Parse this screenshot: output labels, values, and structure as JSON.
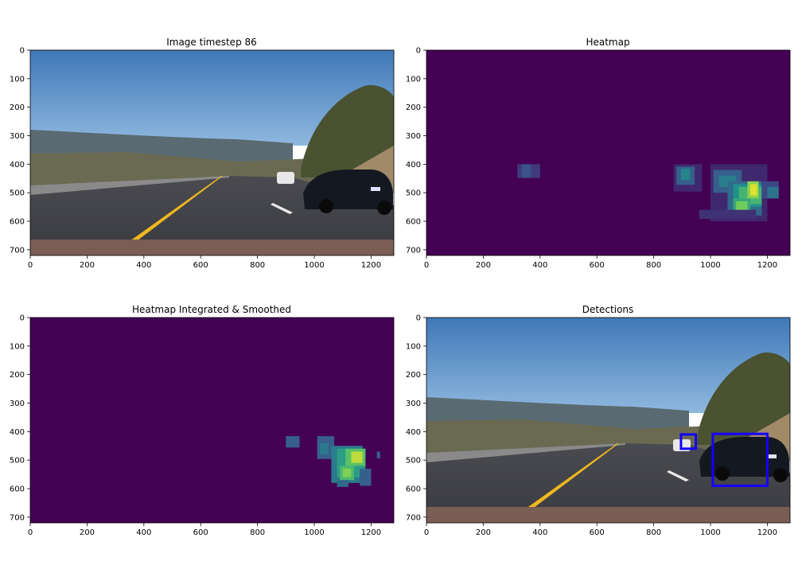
{
  "figure": {
    "colormap": [
      "#440154",
      "#3b528b",
      "#21918c",
      "#5ec962",
      "#fde725"
    ],
    "box_color": "#1400ff"
  },
  "chart_data": [
    {
      "type": "image",
      "title": "Image timestep 86",
      "xlim": [
        0,
        1280
      ],
      "ylim": [
        720,
        0
      ],
      "xticks": [
        0,
        200,
        400,
        600,
        800,
        1000,
        1200
      ],
      "yticks": [
        0,
        100,
        200,
        300,
        400,
        500,
        600,
        700
      ],
      "content": "road-photo",
      "boxes": []
    },
    {
      "type": "heatmap",
      "title": "Heatmap",
      "xlim": [
        0,
        1280
      ],
      "ylim": [
        720,
        0
      ],
      "xticks": [
        0,
        200,
        400,
        600,
        800,
        1000,
        1200
      ],
      "yticks": [
        0,
        100,
        200,
        300,
        400,
        500,
        600,
        700
      ],
      "cells": [
        {
          "x": 320,
          "y": 400,
          "w": 80,
          "h": 48,
          "v": 0.18
        },
        {
          "x": 336,
          "y": 400,
          "w": 32,
          "h": 48,
          "v": 0.25
        },
        {
          "x": 870,
          "y": 400,
          "w": 100,
          "h": 96,
          "v": 0.12
        },
        {
          "x": 880,
          "y": 408,
          "w": 64,
          "h": 64,
          "v": 0.3
        },
        {
          "x": 896,
          "y": 416,
          "w": 32,
          "h": 40,
          "v": 0.45
        },
        {
          "x": 1000,
          "y": 400,
          "w": 200,
          "h": 200,
          "v": 0.12
        },
        {
          "x": 1010,
          "y": 420,
          "w": 100,
          "h": 80,
          "v": 0.3
        },
        {
          "x": 1030,
          "y": 440,
          "w": 60,
          "h": 40,
          "v": 0.42
        },
        {
          "x": 1060,
          "y": 460,
          "w": 120,
          "h": 120,
          "v": 0.35
        },
        {
          "x": 1080,
          "y": 470,
          "w": 100,
          "h": 80,
          "v": 0.5
        },
        {
          "x": 1100,
          "y": 480,
          "w": 80,
          "h": 60,
          "v": 0.65
        },
        {
          "x": 1130,
          "y": 460,
          "w": 40,
          "h": 60,
          "v": 0.82
        },
        {
          "x": 1140,
          "y": 470,
          "w": 24,
          "h": 40,
          "v": 0.95
        },
        {
          "x": 1080,
          "y": 520,
          "w": 60,
          "h": 60,
          "v": 0.6
        },
        {
          "x": 1090,
          "y": 530,
          "w": 40,
          "h": 40,
          "v": 0.78
        },
        {
          "x": 1180,
          "y": 460,
          "w": 60,
          "h": 60,
          "v": 0.22
        },
        {
          "x": 1200,
          "y": 480,
          "w": 40,
          "h": 40,
          "v": 0.38
        },
        {
          "x": 960,
          "y": 560,
          "w": 200,
          "h": 32,
          "v": 0.15
        }
      ],
      "boxes": []
    },
    {
      "type": "heatmap",
      "title": "Heatmap Integrated & Smoothed",
      "xlim": [
        0,
        1280
      ],
      "ylim": [
        720,
        0
      ],
      "xticks": [
        0,
        200,
        400,
        600,
        800,
        1000,
        1200
      ],
      "yticks": [
        0,
        100,
        200,
        300,
        400,
        500,
        600,
        700
      ],
      "cells": [
        {
          "x": 900,
          "y": 416,
          "w": 48,
          "h": 40,
          "v": 0.3
        },
        {
          "x": 1010,
          "y": 416,
          "w": 60,
          "h": 80,
          "v": 0.3
        },
        {
          "x": 1020,
          "y": 440,
          "w": 30,
          "h": 40,
          "v": 0.4
        },
        {
          "x": 1060,
          "y": 450,
          "w": 110,
          "h": 130,
          "v": 0.42
        },
        {
          "x": 1080,
          "y": 460,
          "w": 100,
          "h": 100,
          "v": 0.55
        },
        {
          "x": 1110,
          "y": 460,
          "w": 70,
          "h": 60,
          "v": 0.72
        },
        {
          "x": 1130,
          "y": 470,
          "w": 40,
          "h": 40,
          "v": 0.9
        },
        {
          "x": 1090,
          "y": 520,
          "w": 50,
          "h": 50,
          "v": 0.68
        },
        {
          "x": 1100,
          "y": 530,
          "w": 30,
          "h": 30,
          "v": 0.8
        },
        {
          "x": 1160,
          "y": 530,
          "w": 40,
          "h": 60,
          "v": 0.3
        },
        {
          "x": 1220,
          "y": 470,
          "w": 12,
          "h": 24,
          "v": 0.3
        },
        {
          "x": 1080,
          "y": 570,
          "w": 40,
          "h": 24,
          "v": 0.35
        }
      ],
      "boxes": []
    },
    {
      "type": "image",
      "title": "Detections",
      "xlim": [
        0,
        1280
      ],
      "ylim": [
        720,
        0
      ],
      "xticks": [
        0,
        200,
        400,
        600,
        800,
        1000,
        1200
      ],
      "yticks": [
        0,
        100,
        200,
        300,
        400,
        500,
        600,
        700
      ],
      "content": "road-photo",
      "boxes": [
        {
          "x1": 896,
          "y1": 410,
          "x2": 948,
          "y2": 460
        },
        {
          "x1": 1008,
          "y1": 408,
          "x2": 1200,
          "y2": 590
        }
      ]
    }
  ]
}
